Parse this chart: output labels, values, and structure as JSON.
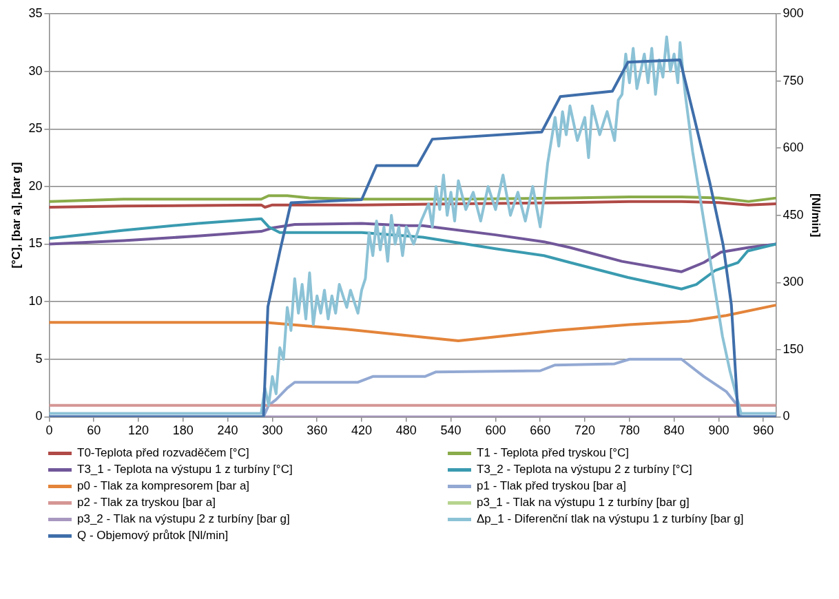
{
  "chart_data": {
    "type": "line",
    "ylabel": "[°C], [bar a], [bar g]",
    "y2label": "[Nl/min]",
    "xlim": [
      0,
      977
    ],
    "xticks": [
      0,
      60,
      120,
      180,
      240,
      300,
      360,
      420,
      480,
      540,
      600,
      660,
      720,
      780,
      840,
      900,
      960
    ],
    "ylim": [
      0,
      35
    ],
    "yticks": [
      0,
      5,
      10,
      15,
      20,
      25,
      30,
      35
    ],
    "y2lim": [
      0,
      900
    ],
    "y2ticks": [
      0,
      150,
      300,
      450,
      600,
      750,
      900
    ],
    "grid": "y",
    "legend": "bottom",
    "marker": "none",
    "line_style": "solid",
    "series": [
      {
        "name": "T0-Teplota před rozvaděčem [°C]",
        "color": "#b04a46",
        "x": [
          0,
          100,
          285,
          290,
          300,
          420,
          550,
          700,
          780,
          850,
          900,
          940,
          977
        ],
        "values": [
          18.2,
          18.3,
          18.4,
          18.2,
          18.4,
          18.4,
          18.5,
          18.6,
          18.7,
          18.7,
          18.6,
          18.4,
          18.5
        ]
      },
      {
        "name": "T1 - Teplota před tryskou [°C]",
        "color": "#8aac4a",
        "x": [
          0,
          100,
          285,
          295,
          320,
          350,
          420,
          550,
          700,
          780,
          850,
          900,
          940,
          977
        ],
        "values": [
          18.7,
          18.9,
          18.9,
          19.2,
          19.2,
          19.0,
          18.9,
          18.9,
          19.0,
          19.1,
          19.1,
          19.0,
          18.7,
          19.0
        ]
      },
      {
        "name": "T3_1 - Teplota na výstupu 1 z turbíny [°C]",
        "color": "#71579a",
        "x": [
          0,
          100,
          200,
          285,
          300,
          330,
          420,
          480,
          502,
          600,
          665,
          700,
          770,
          850,
          880,
          903,
          940,
          977
        ],
        "values": [
          15.0,
          15.3,
          15.7,
          16.1,
          16.4,
          16.7,
          16.8,
          16.6,
          16.6,
          15.8,
          15.2,
          14.7,
          13.5,
          12.6,
          13.4,
          14.3,
          14.7,
          15.0
        ]
      },
      {
        "name": "T3_2 - Teplota na výstupu 2 z turbíny [°C]",
        "color": "#3a9bb0",
        "x": [
          0,
          100,
          200,
          285,
          295,
          310,
          420,
          502,
          600,
          665,
          700,
          778,
          850,
          870,
          895,
          926,
          939,
          977
        ],
        "values": [
          15.5,
          16.2,
          16.8,
          17.2,
          16.5,
          16.0,
          16.0,
          15.6,
          14.6,
          14.0,
          13.4,
          12.1,
          11.1,
          11.5,
          12.7,
          13.4,
          14.4,
          15.0
        ]
      },
      {
        "name": "p0 - Tlak za kompresorem [bar a]",
        "color": "#e3843a",
        "x": [
          0,
          290,
          400,
          550,
          680,
          780,
          860,
          910,
          977
        ],
        "values": [
          8.2,
          8.2,
          7.6,
          6.6,
          7.5,
          8.0,
          8.3,
          8.8,
          9.7
        ]
      },
      {
        "name": "p1 - Tlak před tryskou [bar a]",
        "color": "#93a9d3",
        "x": [
          0,
          288,
          295,
          305,
          320,
          330,
          415,
          435,
          505,
          520,
          660,
          680,
          760,
          780,
          850,
          880,
          910,
          925,
          930,
          977
        ],
        "values": [
          0,
          0,
          1.0,
          1.5,
          2.5,
          3.0,
          3.0,
          3.5,
          3.5,
          3.9,
          4.0,
          4.5,
          4.6,
          5.0,
          5.0,
          3.5,
          2.2,
          1.0,
          0,
          0
        ]
      },
      {
        "name": "p2 - Tlak za tryskou [bar a]",
        "color": "#d59694",
        "x": [
          0,
          977
        ],
        "values": [
          1.0,
          1.0
        ]
      },
      {
        "name": "p3_1 - Tlak na výstupu 1 z turbíny [bar g]",
        "color": "#b7d48f"
      },
      {
        "name": "p3_2 - Tlak na výstupu 2 z turbíny [bar g]",
        "color": "#a898c0",
        "x": [
          0,
          977
        ],
        "values": [
          0,
          0
        ]
      },
      {
        "name": "Δp_1 - Diferenční tlak na výstupu 1 z turbíny [bar g]",
        "color": "#8cc2d6",
        "x": [
          0,
          285,
          290,
          295,
          300,
          305,
          310,
          315,
          320,
          325,
          330,
          335,
          340,
          345,
          350,
          355,
          360,
          365,
          370,
          375,
          380,
          385,
          390,
          395,
          400,
          405,
          410,
          415,
          420,
          425,
          430,
          435,
          440,
          445,
          450,
          455,
          460,
          465,
          470,
          475,
          480,
          490,
          500,
          510,
          515,
          520,
          525,
          530,
          535,
          540,
          545,
          550,
          560,
          570,
          580,
          590,
          600,
          610,
          620,
          630,
          640,
          650,
          660,
          665,
          670,
          675,
          680,
          685,
          690,
          695,
          700,
          710,
          720,
          725,
          730,
          740,
          750,
          760,
          765,
          770,
          775,
          780,
          785,
          790,
          800,
          805,
          810,
          815,
          820,
          825,
          830,
          835,
          840,
          845,
          848,
          855,
          865,
          875,
          885,
          895,
          905,
          915,
          925,
          930,
          977
        ],
        "values": [
          0.3,
          0.3,
          2.5,
          1.0,
          3.5,
          2.0,
          6.0,
          5.0,
          9.5,
          7.5,
          12.0,
          9.0,
          11.5,
          8.5,
          12.5,
          8.0,
          10.5,
          9.0,
          11.0,
          8.5,
          10.5,
          9.0,
          11.5,
          10.5,
          9.5,
          11.0,
          10.0,
          9.0,
          11.0,
          12.0,
          16.0,
          14.0,
          17.0,
          14.5,
          16.5,
          13.5,
          17.5,
          15.0,
          16.5,
          14.0,
          16.5,
          15.0,
          17.0,
          18.5,
          16.5,
          20.0,
          18.0,
          21.0,
          17.5,
          19.5,
          17.0,
          20.5,
          18.0,
          19.5,
          17.0,
          20.0,
          18.0,
          21.0,
          17.5,
          19.5,
          17.0,
          20.0,
          16.5,
          19.0,
          22.0,
          24.0,
          26.0,
          23.5,
          26.5,
          24.5,
          27.0,
          24.0,
          26.0,
          22.5,
          27.0,
          24.5,
          26.5,
          24.0,
          27.5,
          28.0,
          31.5,
          29.0,
          32.0,
          28.5,
          31.5,
          29.0,
          32.0,
          28.0,
          31.0,
          29.5,
          33.0,
          30.0,
          31.5,
          29.0,
          32.5,
          28.0,
          23.0,
          19.0,
          15.0,
          11.0,
          7.0,
          4.0,
          1.5,
          0.3,
          0.3
        ]
      },
      {
        "name": "Q - Objemový průtok [Nl/min]",
        "color": "#3f6eaa",
        "axis": "y2",
        "x": [
          0,
          288,
          294,
          310,
          325,
          420,
          440,
          495,
          515,
          662,
          687,
          757,
          778,
          848,
          866,
          888,
          906,
          917,
          926,
          928,
          977
        ],
        "values": [
          0,
          0,
          246,
          369,
          478,
          485,
          561,
          561,
          620,
          636,
          715,
          727,
          792,
          797,
          675,
          523,
          383,
          250,
          5,
          0,
          0
        ]
      }
    ]
  }
}
